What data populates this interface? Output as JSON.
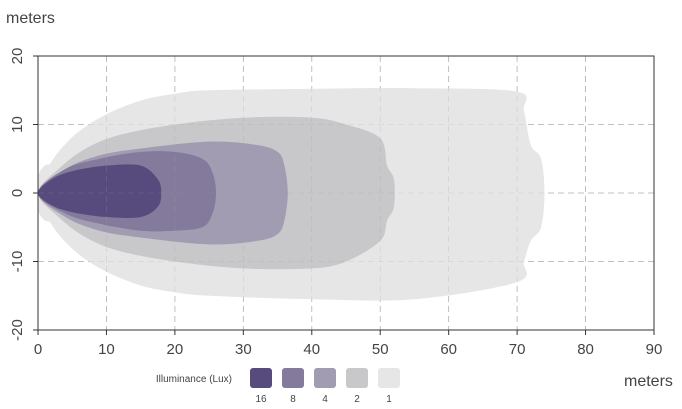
{
  "chart_data": {
    "type": "area",
    "title": "",
    "xlabel": "meters",
    "ylabel": "meters",
    "xlim": [
      0,
      90
    ],
    "ylim": [
      -20,
      20
    ],
    "xticks": [
      0,
      10,
      20,
      30,
      40,
      50,
      60,
      70,
      80,
      90
    ],
    "yticks": [
      20,
      10,
      0,
      -10,
      -20
    ],
    "grid": true,
    "legend": {
      "title": "Illuminance (Lux)",
      "placement": "bottom-center",
      "entries": [
        {
          "label": "16",
          "color": "#574a7c"
        },
        {
          "label": "8",
          "color": "#847a9c"
        },
        {
          "label": "4",
          "color": "#a29cb2"
        },
        {
          "label": "2",
          "color": "#c8c7ca"
        },
        {
          "label": "1",
          "color": "#e6e6e7"
        }
      ]
    },
    "series": [
      {
        "name": "1",
        "color": "#e6e6e7",
        "points": [
          [
            0,
            0
          ],
          [
            0.5,
            2
          ],
          [
            1,
            3
          ],
          [
            3,
            6
          ],
          [
            6,
            9
          ],
          [
            10,
            11.5
          ],
          [
            15,
            13.5
          ],
          [
            20,
            14.5
          ],
          [
            25,
            15
          ],
          [
            40,
            15.2
          ],
          [
            55,
            15.3
          ],
          [
            70,
            14.8
          ],
          [
            71,
            12
          ],
          [
            72,
            7
          ],
          [
            73.5,
            5
          ],
          [
            74,
            0
          ],
          [
            73.5,
            -5
          ],
          [
            72,
            -7
          ],
          [
            71,
            -10
          ],
          [
            70,
            -13
          ],
          [
            55,
            -15.5
          ],
          [
            40,
            -15.5
          ],
          [
            25,
            -15
          ],
          [
            20,
            -14.5
          ],
          [
            15,
            -13.5
          ],
          [
            10,
            -11.5
          ],
          [
            6,
            -9
          ],
          [
            3,
            -6
          ],
          [
            1,
            -3
          ],
          [
            0.5,
            -2
          ]
        ]
      },
      {
        "name": "2",
        "color": "#c8c7ca",
        "points": [
          [
            0,
            0
          ],
          [
            3,
            3.5
          ],
          [
            7,
            6.5
          ],
          [
            12,
            8.5
          ],
          [
            20,
            10
          ],
          [
            30,
            11
          ],
          [
            40,
            11
          ],
          [
            45,
            10
          ],
          [
            50,
            8
          ],
          [
            51,
            4
          ],
          [
            52,
            2
          ],
          [
            52,
            -2
          ],
          [
            51,
            -4
          ],
          [
            50,
            -7
          ],
          [
            45,
            -10
          ],
          [
            40,
            -11
          ],
          [
            30,
            -11
          ],
          [
            20,
            -10
          ],
          [
            12,
            -8.5
          ],
          [
            7,
            -6.5
          ],
          [
            3,
            -3.5
          ]
        ]
      },
      {
        "name": "4",
        "color": "#a29cb2",
        "points": [
          [
            0,
            0
          ],
          [
            4,
            3.5
          ],
          [
            9,
            5.5
          ],
          [
            15,
            6.5
          ],
          [
            25,
            7.5
          ],
          [
            32,
            7
          ],
          [
            35,
            6
          ],
          [
            36,
            4
          ],
          [
            36.5,
            0
          ],
          [
            36,
            -4
          ],
          [
            35,
            -6
          ],
          [
            32,
            -7
          ],
          [
            25,
            -7.5
          ],
          [
            15,
            -6.5
          ],
          [
            9,
            -5.5
          ],
          [
            4,
            -3.5
          ]
        ]
      },
      {
        "name": "8",
        "color": "#847a9c",
        "points": [
          [
            0,
            0
          ],
          [
            4,
            3.5
          ],
          [
            9,
            5
          ],
          [
            15,
            6
          ],
          [
            20,
            6
          ],
          [
            24,
            5
          ],
          [
            25.5,
            3
          ],
          [
            26,
            0
          ],
          [
            25.5,
            -3
          ],
          [
            24,
            -5
          ],
          [
            20,
            -5.5
          ],
          [
            15,
            -5.5
          ],
          [
            9,
            -4.5
          ],
          [
            4,
            -3
          ]
        ]
      },
      {
        "name": "16",
        "color": "#574a7c",
        "points": [
          [
            0,
            0
          ],
          [
            2,
            2
          ],
          [
            5,
            3.2
          ],
          [
            10,
            4
          ],
          [
            15,
            4
          ],
          [
            17.5,
            2
          ],
          [
            18,
            0
          ],
          [
            17.5,
            -2
          ],
          [
            15,
            -3.5
          ],
          [
            10,
            -3.5
          ],
          [
            5,
            -2.8
          ],
          [
            2,
            -1.8
          ]
        ]
      }
    ],
    "source_glow": {
      "color": "#e6e6e7",
      "points": [
        [
          0,
          0
        ],
        [
          0,
          2.5
        ],
        [
          1,
          4
        ],
        [
          2,
          4
        ],
        [
          2,
          3
        ],
        [
          1.5,
          1
        ],
        [
          1.5,
          -1
        ],
        [
          2,
          -3
        ],
        [
          2,
          -4
        ],
        [
          1,
          -4
        ],
        [
          0,
          -2.5
        ]
      ]
    }
  }
}
